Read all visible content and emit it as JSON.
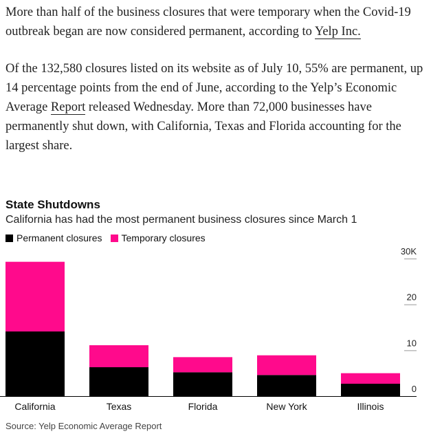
{
  "article": {
    "p1_text": "More than half of the business closures that were temporary when the Covid-19 outbreak began are now considered permanent, according to ",
    "p1_link": "Yelp Inc.",
    "p2_text1": "Of the 132,580 closures listed on its website as of July 10, 55% are permanent, up 14 percentage points from the end of June, according to the Yelp’s Economic Average ",
    "p2_link": "Report",
    "p2_text2": " released Wednesday. More than 72,000 businesses have permanently shut down, with California, Texas and Florida accounting for the largest share."
  },
  "chart_data": {
    "type": "bar",
    "stacked": true,
    "title": "State Shutdowns",
    "subtitle": "California has had the most permanent business closures since March 1",
    "categories": [
      "California",
      "Texas",
      "Florida",
      "New York",
      "Illinois"
    ],
    "series": [
      {
        "name": "Permanent closures",
        "color": "#000000",
        "values": [
          14100,
          6300,
          5200,
          4600,
          2700
        ]
      },
      {
        "name": "Temporary closures",
        "color": "#ff0a8c",
        "values": [
          15200,
          4800,
          3300,
          4300,
          2300
        ]
      }
    ],
    "y_ticks": [
      "0",
      "10",
      "20",
      "30K"
    ],
    "y_tick_values": [
      0,
      10000,
      20000,
      30000
    ],
    "ylim": [
      0,
      30000
    ],
    "legend_position": "top-left",
    "y_axis_position": "right",
    "source": "Source: Yelp Economic Average Report"
  }
}
